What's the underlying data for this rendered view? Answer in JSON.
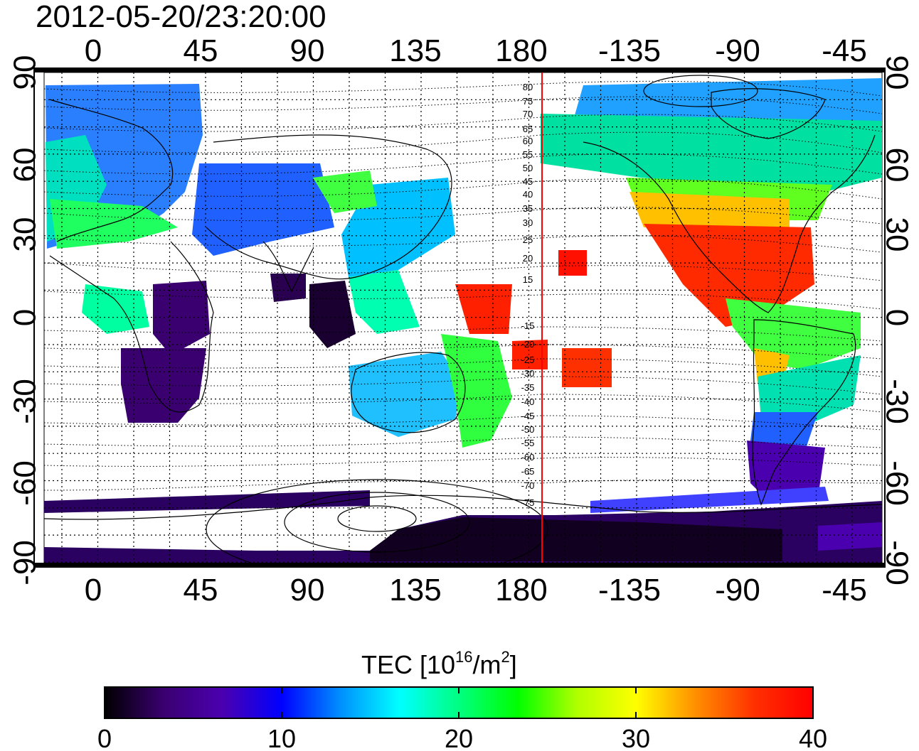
{
  "title": "2012-05-20/23:20:00",
  "map": {
    "top_lon_ticks": [
      "0",
      "45",
      "90",
      "135",
      "180",
      "-135",
      "-90",
      "-45"
    ],
    "bottom_lon_ticks": [
      "0",
      "45",
      "90",
      "135",
      "180",
      "-135",
      "-90",
      "-45"
    ],
    "left_lat_ticks": [
      "90",
      "60",
      "30",
      "0",
      "-30",
      "-60",
      "-90"
    ],
    "right_lat_ticks": [
      "90",
      "60",
      "30",
      "0",
      "-30",
      "-60",
      "-90"
    ],
    "contour_labels": [
      "80",
      "75",
      "70",
      "65",
      "60",
      "55",
      "50",
      "45",
      "40",
      "35",
      "30",
      "25",
      "20",
      "15",
      "-15",
      "-20",
      "-25",
      "-30",
      "-35",
      "-40",
      "-45",
      "-50",
      "-55",
      "-60",
      "-65",
      "-70",
      "-75"
    ],
    "terminator_color": "#ff0000",
    "terminator_longitude": -170
  },
  "colorbar": {
    "label_main": "TEC  [10",
    "label_sup1": "16",
    "label_mid": "/m",
    "label_sup2": "2",
    "label_end": "]",
    "min": 0,
    "max": 40,
    "ticks": [
      "0",
      "10",
      "20",
      "30",
      "40"
    ],
    "colormap": [
      "#000000",
      "#3a0070",
      "#4b00b0",
      "#0000ff",
      "#0090ff",
      "#00ffff",
      "#00ff80",
      "#00ff00",
      "#b0ff00",
      "#ffff00",
      "#ff9000",
      "#ff3000",
      "#ff0000"
    ]
  }
}
